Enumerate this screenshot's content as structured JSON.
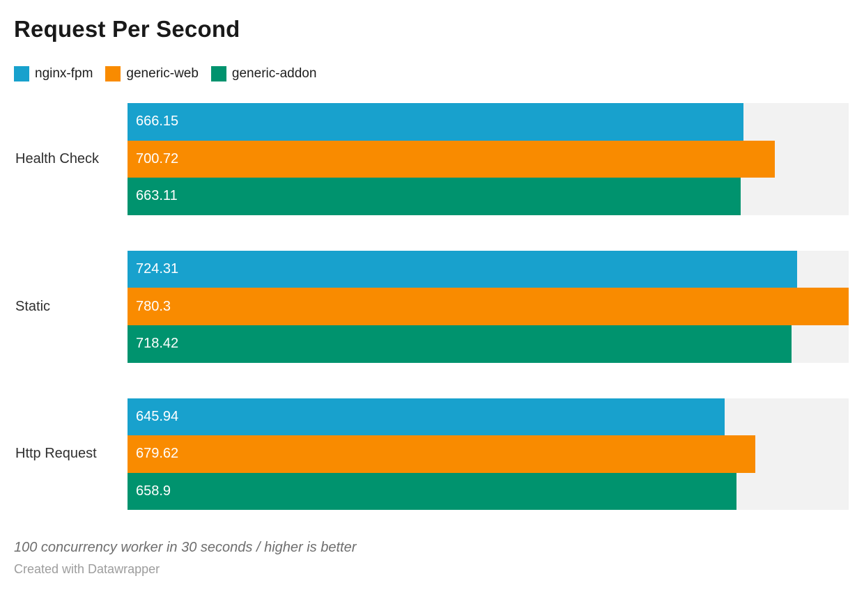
{
  "title": "Request Per Second",
  "legend": {
    "items": [
      {
        "label": "nginx-fpm",
        "color": "#18a1cd"
      },
      {
        "label": "generic-web",
        "color": "#f98b00"
      },
      {
        "label": "generic-addon",
        "color": "#00936e"
      }
    ]
  },
  "chart_data": {
    "type": "bar",
    "orientation": "horizontal",
    "title": "Request Per Second",
    "categories": [
      "Health Check",
      "Static",
      "Http Request"
    ],
    "series": [
      {
        "name": "nginx-fpm",
        "color": "#18a1cd",
        "values": [
          666.15,
          724.31,
          645.94
        ]
      },
      {
        "name": "generic-web",
        "color": "#f98b00",
        "values": [
          700.72,
          780.3,
          679.62
        ]
      },
      {
        "name": "generic-addon",
        "color": "#00936e",
        "values": [
          663.11,
          718.42,
          658.9
        ]
      }
    ],
    "xlim": [
      0,
      780.3
    ],
    "grid": false,
    "legend_position": "top",
    "track_color": "#f2f2f2",
    "value_labels": "inside-start"
  },
  "footer": {
    "note": "100 concurrency worker in 30 seconds / higher is better",
    "credit": "Created with Datawrapper"
  }
}
